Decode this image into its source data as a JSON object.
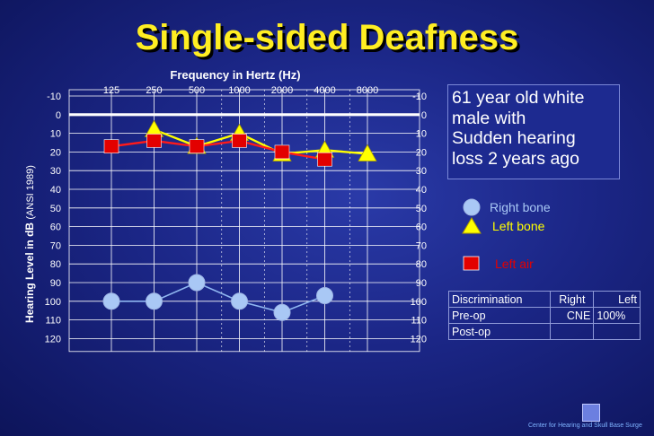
{
  "title": "Single-sided Deafness",
  "chart": {
    "x_title": "Frequency in Hertz (Hz)",
    "y_title_main": "Hearing Level in dB",
    "y_title_sub": "(ANSI 1989)",
    "freq_labels": [
      "125",
      "250",
      "500",
      "1000",
      "2000",
      "4000",
      "8000"
    ],
    "db_labels": [
      "-10",
      "0",
      "10",
      "20",
      "30",
      "40",
      "50",
      "60",
      "70",
      "80",
      "90",
      "100",
      "110",
      "120"
    ]
  },
  "chart_data": {
    "type": "line",
    "title": "Frequency in Hertz (Hz)",
    "xlabel": "Frequency in Hertz (Hz)",
    "ylabel": "Hearing Level in dB (ANSI 1989)",
    "categories": [
      "125",
      "250",
      "500",
      "1000",
      "2000",
      "4000",
      "8000"
    ],
    "ylim": [
      -10,
      120
    ],
    "y_inverted": true,
    "series": [
      {
        "name": "Right bone",
        "marker": "circle",
        "color": "#a9c8f5",
        "points": [
          [
            125,
            100
          ],
          [
            250,
            100
          ],
          [
            500,
            90
          ],
          [
            1000,
            100
          ],
          [
            2000,
            106
          ],
          [
            4000,
            97
          ]
        ]
      },
      {
        "name": "Left bone",
        "marker": "triangle",
        "color": "#ffff00",
        "points": [
          [
            250,
            8
          ],
          [
            500,
            17
          ],
          [
            1000,
            10
          ],
          [
            2000,
            21
          ],
          [
            4000,
            19
          ],
          [
            8000,
            21
          ]
        ]
      },
      {
        "name": "Left air",
        "marker": "square",
        "color": "#e30000",
        "points": [
          [
            125,
            17
          ],
          [
            250,
            14
          ],
          [
            500,
            17
          ],
          [
            1000,
            14
          ],
          [
            2000,
            20
          ],
          [
            4000,
            24
          ]
        ]
      }
    ]
  },
  "info": {
    "lines": [
      "61 year old white",
      "male with",
      "Sudden hearing",
      "loss 2  years ago"
    ]
  },
  "legend": [
    {
      "label": "Right bone",
      "color": "#a9c8f5",
      "marker": "circle"
    },
    {
      "label": "Left bone",
      "color": "#ffff00",
      "marker": "triangle"
    },
    {
      "label": "Left  air",
      "color": "#e30000",
      "marker": "square"
    }
  ],
  "table": {
    "headers": [
      "Discrimination",
      "Right",
      "Left"
    ],
    "rows": [
      [
        "Pre-op",
        "CNE",
        "100%"
      ],
      [
        "Post-op",
        "",
        ""
      ]
    ]
  },
  "footer": "Center for Hearing and Skull Base Surge"
}
